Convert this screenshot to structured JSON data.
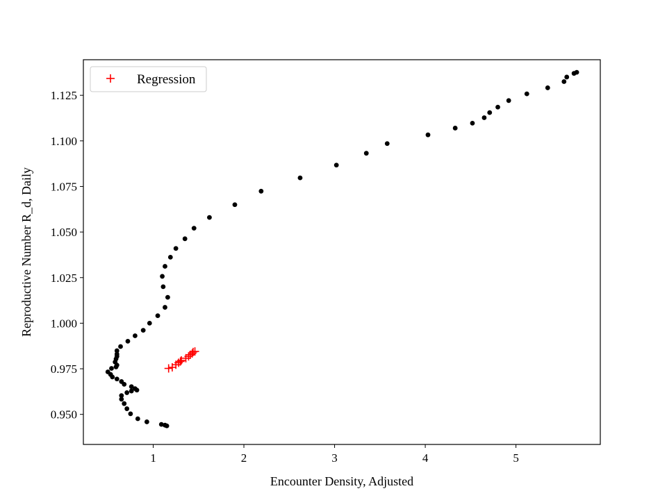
{
  "chart_data": {
    "type": "scatter",
    "title": "",
    "xlabel": "Encounter Density, Adjusted",
    "ylabel": "Reproductive Number R_d, Daily",
    "xlim": [
      0.23,
      5.93
    ],
    "ylim": [
      0.9335,
      1.1445
    ],
    "xticks": [
      1,
      2,
      3,
      4,
      5
    ],
    "xtick_labels": [
      "1",
      "2",
      "3",
      "4",
      "5"
    ],
    "yticks": [
      0.95,
      0.975,
      1.0,
      1.025,
      1.05,
      1.075,
      1.1,
      1.125
    ],
    "ytick_labels": [
      "0.950",
      "0.975",
      "1.000",
      "1.025",
      "1.050",
      "1.075",
      "1.100",
      "1.125"
    ],
    "grid": false,
    "legend": {
      "placement": "top-left",
      "entries": [
        "Regression"
      ]
    },
    "series": [
      {
        "name": "",
        "marker": "dot",
        "color": "#000000",
        "points": [
          [
            5.67,
            1.1376
          ],
          [
            5.64,
            1.137
          ],
          [
            5.56,
            1.135
          ],
          [
            5.53,
            1.1325
          ],
          [
            5.35,
            1.1291
          ],
          [
            5.12,
            1.1258
          ],
          [
            4.92,
            1.1221
          ],
          [
            4.8,
            1.1185
          ],
          [
            4.71,
            1.1155
          ],
          [
            4.65,
            1.1127
          ],
          [
            4.52,
            1.1097
          ],
          [
            4.33,
            1.107
          ],
          [
            4.03,
            1.1033
          ],
          [
            3.58,
            1.0985
          ],
          [
            3.35,
            1.0932
          ],
          [
            3.02,
            1.0867
          ],
          [
            2.62,
            1.0797
          ],
          [
            2.19,
            1.0724
          ],
          [
            1.9,
            1.065
          ],
          [
            1.62,
            1.058
          ],
          [
            1.45,
            1.0521
          ],
          [
            1.35,
            1.0463
          ],
          [
            1.25,
            1.041
          ],
          [
            1.19,
            1.0362
          ],
          [
            1.13,
            1.0312
          ],
          [
            1.1,
            1.0257
          ],
          [
            1.11,
            1.02
          ],
          [
            1.16,
            1.0142
          ],
          [
            1.13,
            1.0087
          ],
          [
            1.05,
            1.0041
          ],
          [
            0.96,
            1.0
          ],
          [
            0.89,
            0.9961
          ],
          [
            0.8,
            0.9931
          ],
          [
            0.72,
            0.9901
          ],
          [
            0.64,
            0.9872
          ],
          [
            0.6,
            0.9849
          ],
          [
            0.6,
            0.983
          ],
          [
            0.6,
            0.9818
          ],
          [
            0.59,
            0.9804
          ],
          [
            0.58,
            0.9787
          ],
          [
            0.6,
            0.977
          ],
          [
            0.59,
            0.976
          ],
          [
            0.54,
            0.9752
          ],
          [
            0.5,
            0.9733
          ],
          [
            0.53,
            0.9719
          ],
          [
            0.55,
            0.9705
          ],
          [
            0.6,
            0.9694
          ],
          [
            0.65,
            0.968
          ],
          [
            0.68,
            0.9665
          ],
          [
            0.76,
            0.9652
          ],
          [
            0.8,
            0.9641
          ],
          [
            0.82,
            0.9633
          ],
          [
            0.76,
            0.9628
          ],
          [
            0.71,
            0.9619
          ],
          [
            0.65,
            0.9603
          ],
          [
            0.65,
            0.9583
          ],
          [
            0.68,
            0.9559
          ],
          [
            0.71,
            0.9531
          ],
          [
            0.75,
            0.9503
          ],
          [
            0.83,
            0.9476
          ],
          [
            0.93,
            0.9459
          ],
          [
            1.09,
            0.9445
          ],
          [
            1.13,
            0.9441
          ],
          [
            1.15,
            0.9437
          ]
        ]
      },
      {
        "name": "Regression",
        "marker": "plus",
        "color": "#ff0000",
        "points": [
          [
            1.17,
            0.9752
          ],
          [
            1.21,
            0.9758
          ],
          [
            1.25,
            0.9772
          ],
          [
            1.28,
            0.9783
          ],
          [
            1.3,
            0.979
          ],
          [
            1.31,
            0.9796
          ],
          [
            1.36,
            0.9808
          ],
          [
            1.39,
            0.9818
          ],
          [
            1.41,
            0.9827
          ],
          [
            1.43,
            0.9834
          ],
          [
            1.44,
            0.9842
          ],
          [
            1.46,
            0.9845
          ]
        ]
      }
    ]
  }
}
